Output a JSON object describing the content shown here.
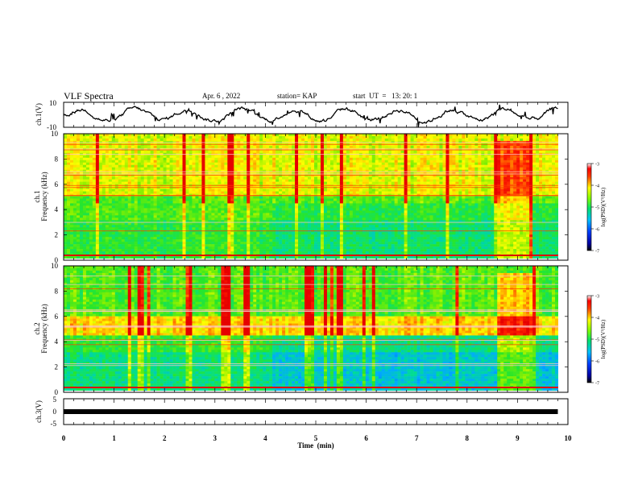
{
  "header": {
    "title": "VLF Spectra",
    "date": "Apr. 6  , 2022",
    "station": "station= KAP",
    "start_ut": "start  UT  =   13: 20: 1"
  },
  "chart_data": [
    {
      "type": "line",
      "ylabel": "ch.1(V)",
      "ylim": [
        -10,
        10
      ],
      "y_ticks": [
        "10",
        "-10"
      ],
      "xlim": [
        0,
        10
      ],
      "series": [
        {
          "color": "#000000"
        }
      ]
    },
    {
      "type": "heatmap",
      "ylabel_line1": "ch.1",
      "ylabel_line2": "Frequency (kHz)",
      "ylim": [
        0,
        10
      ],
      "y_ticks": [
        "0",
        "2",
        "4",
        "6",
        "8",
        "10"
      ],
      "colorbar": {
        "label": "log(PSD)(V²/Hz)",
        "ticks": [
          "-3",
          "-4",
          "-5",
          "-6",
          "-7"
        ],
        "range": [
          -7,
          -3
        ]
      }
    },
    {
      "type": "heatmap",
      "ylabel_line1": "ch.2",
      "ylabel_line2": "Frequency (kHz)",
      "ylim": [
        0,
        10
      ],
      "y_ticks": [
        "0",
        "2",
        "4",
        "6",
        "8",
        "10"
      ],
      "colorbar": {
        "label": "log(PSD)(V²/Hz)",
        "ticks": [
          "-3",
          "-4",
          "-5",
          "-6",
          "-7"
        ],
        "range": [
          -7,
          -3
        ]
      }
    },
    {
      "type": "line",
      "ylabel": "ch.3(V)",
      "ylim": [
        -5,
        5
      ],
      "y_ticks": [
        "5",
        "0",
        "-5"
      ],
      "xlim": [
        0,
        10
      ],
      "series": [
        {
          "color": "#000000"
        }
      ]
    }
  ],
  "x_axis": {
    "label": "Time  (min)",
    "ticks": [
      "0",
      "1",
      "2",
      "3",
      "4",
      "5",
      "6",
      "7",
      "8",
      "9",
      "10"
    ],
    "range": [
      0,
      10
    ]
  }
}
